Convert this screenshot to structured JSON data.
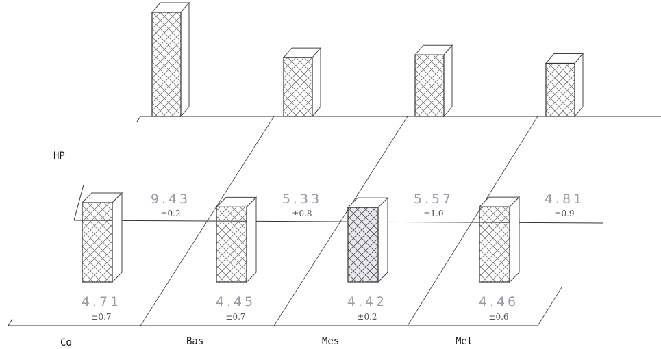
{
  "chart_data": {
    "type": "bar",
    "categories": [
      "Co",
      "Bas",
      "Mes",
      "Met"
    ],
    "series": [
      {
        "name": "HP",
        "values": [
          9.43,
          5.33,
          5.57,
          4.81
        ],
        "errors": [
          "±0.2",
          "±0.8",
          "±1.0",
          "±0.9"
        ],
        "value_labels": [
          "9.43",
          "5.33",
          "5.57",
          "4.81"
        ]
      },
      {
        "name": "",
        "values": [
          4.71,
          4.45,
          4.42,
          4.46
        ],
        "errors": [
          "±0.7",
          "±0.7",
          "±0.2",
          "±0.6"
        ],
        "value_labels": [
          "4.71",
          "4.45",
          "4.42",
          "4.46"
        ]
      }
    ],
    "style": "3d-bars-hatched",
    "grid": false,
    "legend": "none"
  }
}
